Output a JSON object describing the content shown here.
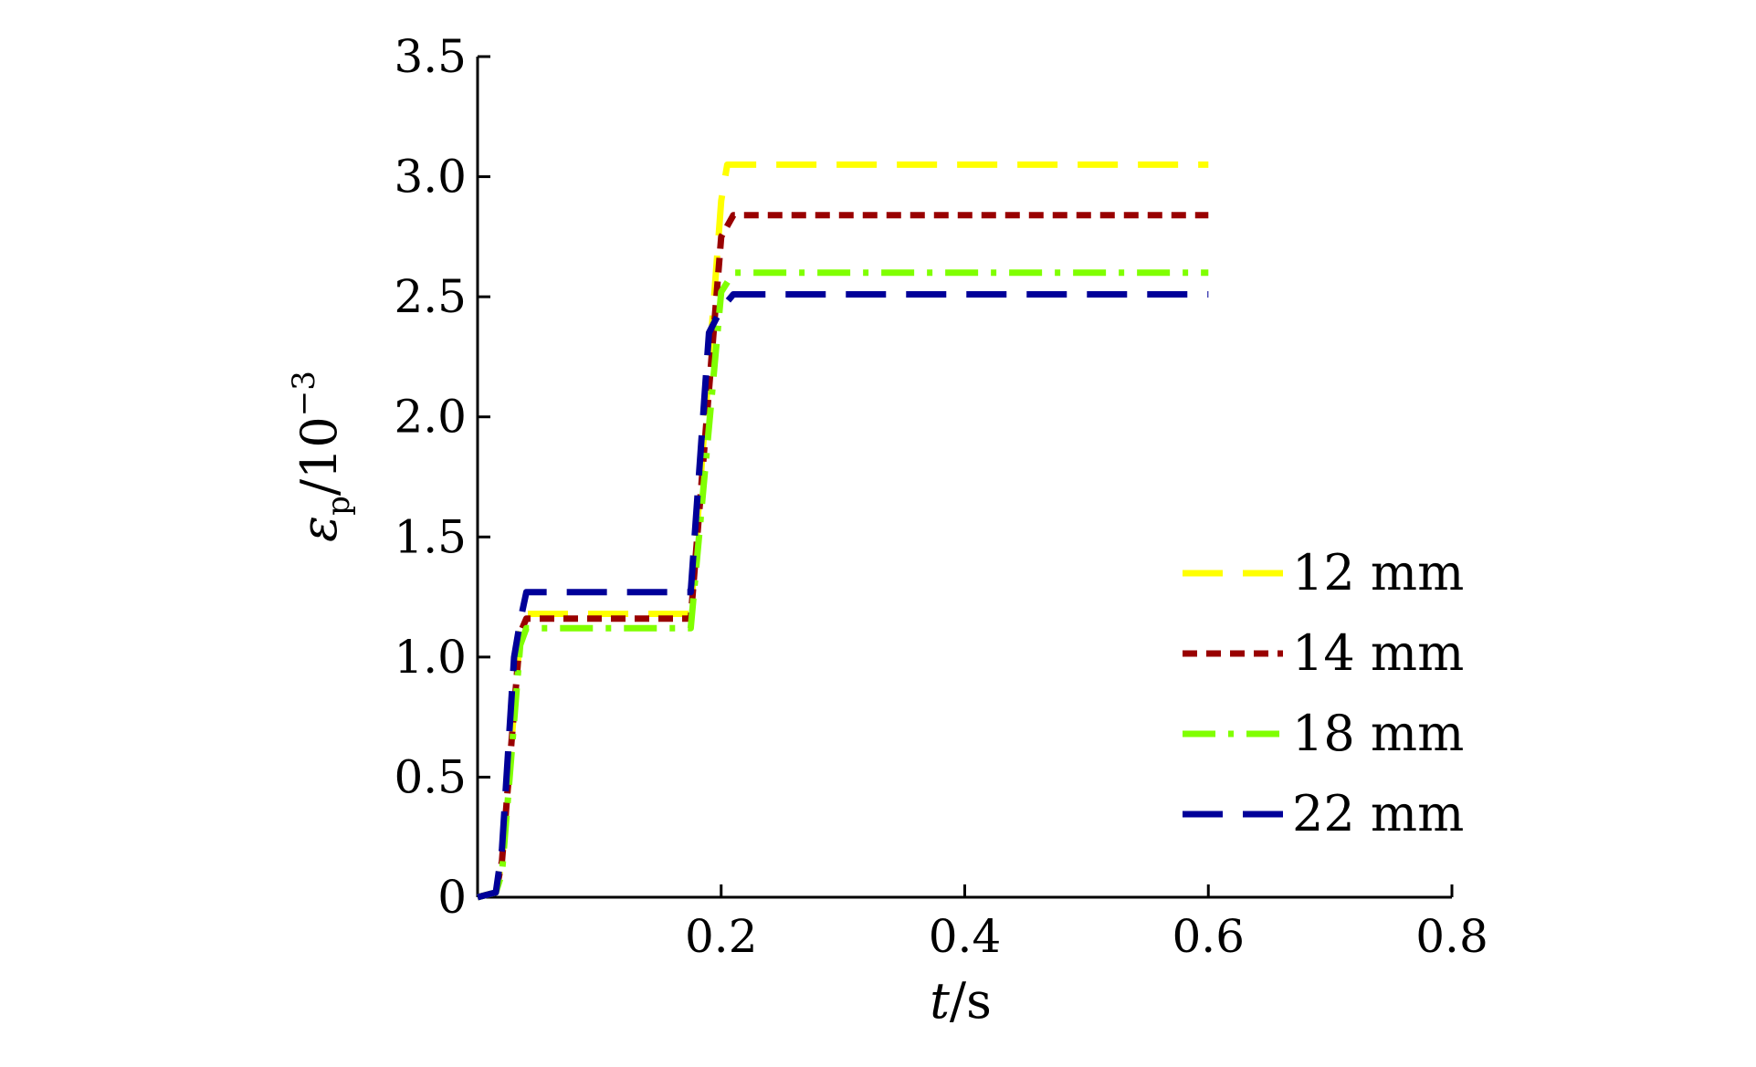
{
  "chart_data": {
    "type": "line",
    "xlabel": "t/s",
    "ylabel": "ε_p/10^-3",
    "xlabel_parts": {
      "var": "t",
      "unit": "/s"
    },
    "ylabel_parts": {
      "var": "ε",
      "sub": "p",
      "unit": "/10",
      "sup": "−3"
    },
    "xlim": [
      0,
      0.8
    ],
    "ylim": [
      0,
      3.5
    ],
    "xticks": [
      0.2,
      0.4,
      0.6,
      0.8
    ],
    "xtick_labels": [
      "0.2",
      "0.4",
      "0.6",
      "0.8"
    ],
    "yticks": [
      0,
      0.5,
      1.0,
      1.5,
      2.0,
      2.5,
      3.0,
      3.5
    ],
    "ytick_labels": [
      "0",
      "0.5",
      "1.0",
      "1.5",
      "2.0",
      "2.5",
      "3.0",
      "3.5"
    ],
    "grid": false,
    "legend_position": "right",
    "series": [
      {
        "name": "12 mm",
        "color": "#ffff00",
        "dash": "long-dash",
        "x": [
          0,
          0.015,
          0.02,
          0.035,
          0.04,
          0.17,
          0.175,
          0.2,
          0.205,
          0.6
        ],
        "y": [
          0,
          0.02,
          0.15,
          1.1,
          1.18,
          1.18,
          1.18,
          2.9,
          3.05,
          3.05
        ]
      },
      {
        "name": "14 mm",
        "color": "#990000",
        "dash": "short-dash",
        "x": [
          0,
          0.015,
          0.02,
          0.035,
          0.04,
          0.17,
          0.175,
          0.2,
          0.21,
          0.6
        ],
        "y": [
          0,
          0.02,
          0.15,
          1.1,
          1.16,
          1.16,
          1.16,
          2.75,
          2.84,
          2.84
        ]
      },
      {
        "name": "18 mm",
        "color": "#80ff00",
        "dash": "dash-dot",
        "x": [
          0,
          0.015,
          0.02,
          0.035,
          0.04,
          0.17,
          0.175,
          0.2,
          0.21,
          0.6
        ],
        "y": [
          0,
          0.02,
          0.1,
          1.05,
          1.12,
          1.12,
          1.12,
          2.52,
          2.6,
          2.6
        ]
      },
      {
        "name": "22 mm",
        "color": "#000099",
        "dash": "long-dash",
        "x": [
          0,
          0.015,
          0.02,
          0.03,
          0.035,
          0.04,
          0.17,
          0.175,
          0.19,
          0.2,
          0.21,
          0.6
        ],
        "y": [
          0,
          0.02,
          0.2,
          1.0,
          1.15,
          1.27,
          1.27,
          1.27,
          2.35,
          2.45,
          2.51,
          2.51
        ]
      }
    ]
  }
}
